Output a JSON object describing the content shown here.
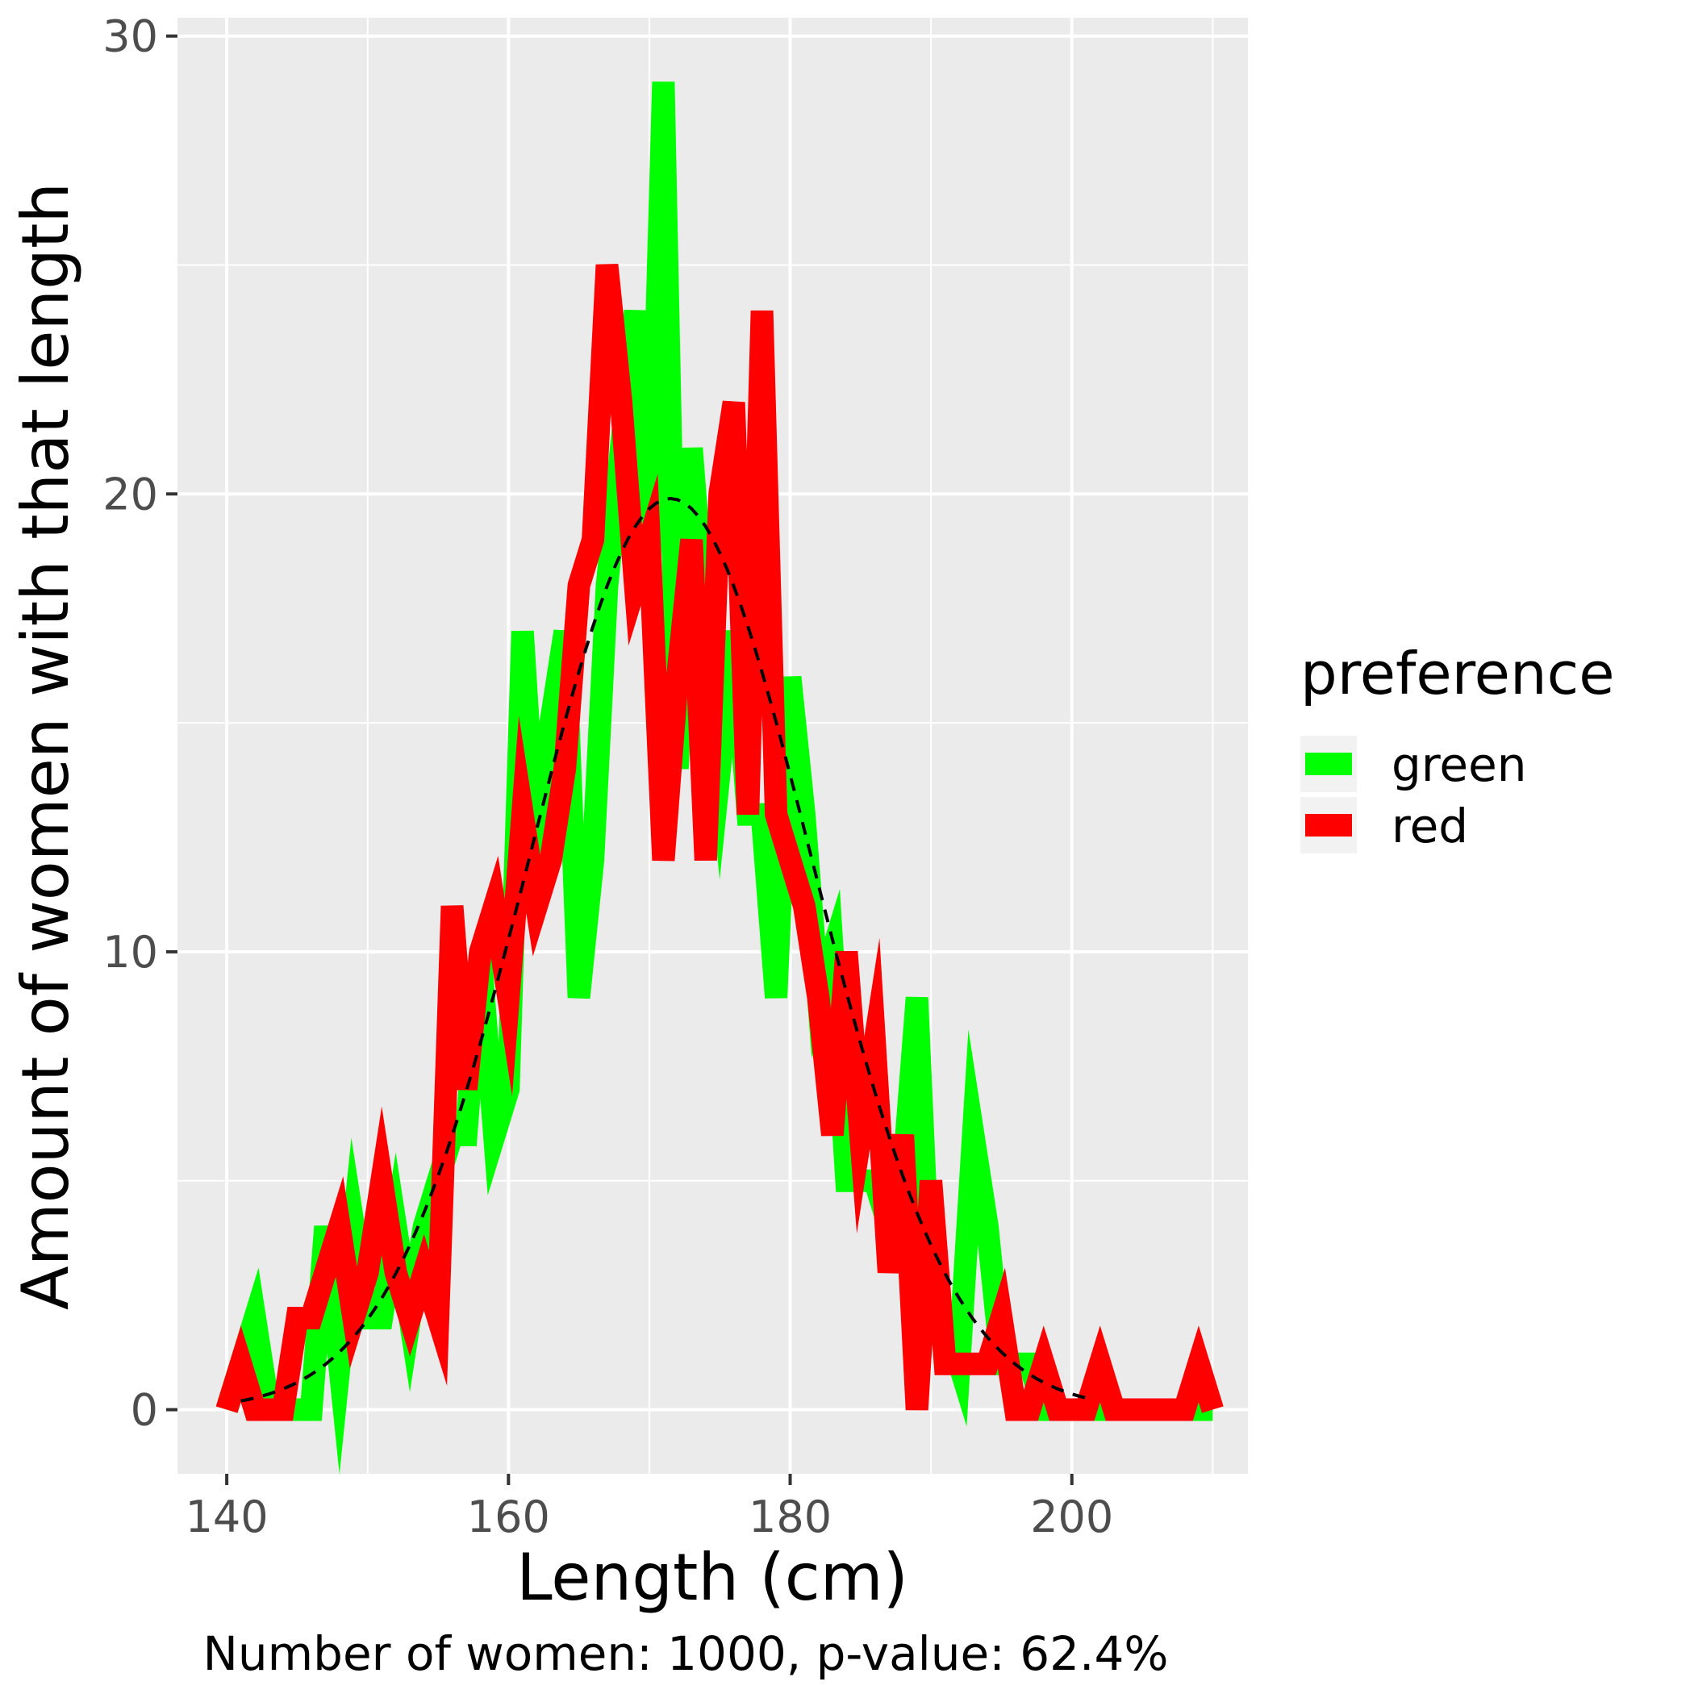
{
  "chart_data": {
    "type": "line",
    "title": "",
    "xlabel": "Length (cm)",
    "ylabel": "Amount of women with that length",
    "caption": "Number of women: 1000, p-value: 62.4%",
    "xlim": [
      136.5,
      212.5
    ],
    "ylim": [
      -1.4,
      30.4
    ],
    "xticks": [
      140,
      160,
      180,
      200
    ],
    "yticks": [
      0,
      10,
      20,
      30
    ],
    "grid": true,
    "legend": {
      "title": "preference",
      "placement": "right"
    },
    "x": [
      140,
      141,
      142,
      143,
      144,
      145,
      146,
      147,
      148,
      149,
      150,
      151,
      152,
      153,
      154,
      155,
      156,
      157,
      158,
      159,
      160,
      161,
      162,
      163,
      164,
      165,
      166,
      167,
      168,
      169,
      170,
      171,
      172,
      173,
      174,
      175,
      176,
      177,
      178,
      179,
      180,
      181,
      182,
      183,
      184,
      185,
      186,
      187,
      188,
      189,
      190,
      191,
      192,
      193,
      194,
      195,
      196,
      197,
      198,
      199,
      200,
      201,
      202,
      203,
      204,
      205,
      206,
      207,
      208,
      209,
      210
    ],
    "series": [
      {
        "name": "green",
        "color": "#00ff00",
        "values": [
          0,
          1,
          2,
          0,
          0,
          0,
          0,
          4,
          1,
          4,
          2,
          2,
          4,
          2,
          4,
          5,
          6,
          6,
          10,
          6,
          7,
          17,
          12,
          15,
          17,
          9,
          12,
          18,
          21,
          24,
          18,
          29,
          14,
          21,
          17,
          14,
          17,
          13,
          13,
          9,
          16,
          13,
          9,
          10,
          5,
          5,
          5,
          4,
          5,
          9,
          2,
          2,
          1,
          6,
          4,
          1,
          1,
          1,
          0,
          0,
          0,
          0,
          0,
          0,
          0,
          0,
          0,
          0,
          0,
          0,
          0
        ]
      },
      {
        "name": "red",
        "color": "#ff0000",
        "values": [
          0,
          1,
          0,
          0,
          0,
          2,
          2,
          3,
          4,
          2,
          3,
          5,
          3,
          2,
          3,
          2,
          11,
          7,
          10,
          11,
          9,
          13,
          11,
          12,
          14,
          18,
          19,
          25,
          22,
          18,
          19,
          12,
          16,
          19,
          12,
          20,
          22,
          13,
          24,
          13,
          12,
          11,
          9,
          6,
          10,
          6,
          8,
          3,
          6,
          0,
          5,
          1,
          1,
          1,
          1,
          2,
          0,
          0,
          1,
          0,
          0,
          0,
          1,
          0,
          0,
          0,
          0,
          0,
          0,
          1,
          0
        ]
      }
    ],
    "reference_curve": {
      "style": "dashed",
      "color": "#000000",
      "mean": 171.5,
      "sd": 10,
      "peak": 19.9,
      "range": [
        141,
        201
      ]
    }
  }
}
